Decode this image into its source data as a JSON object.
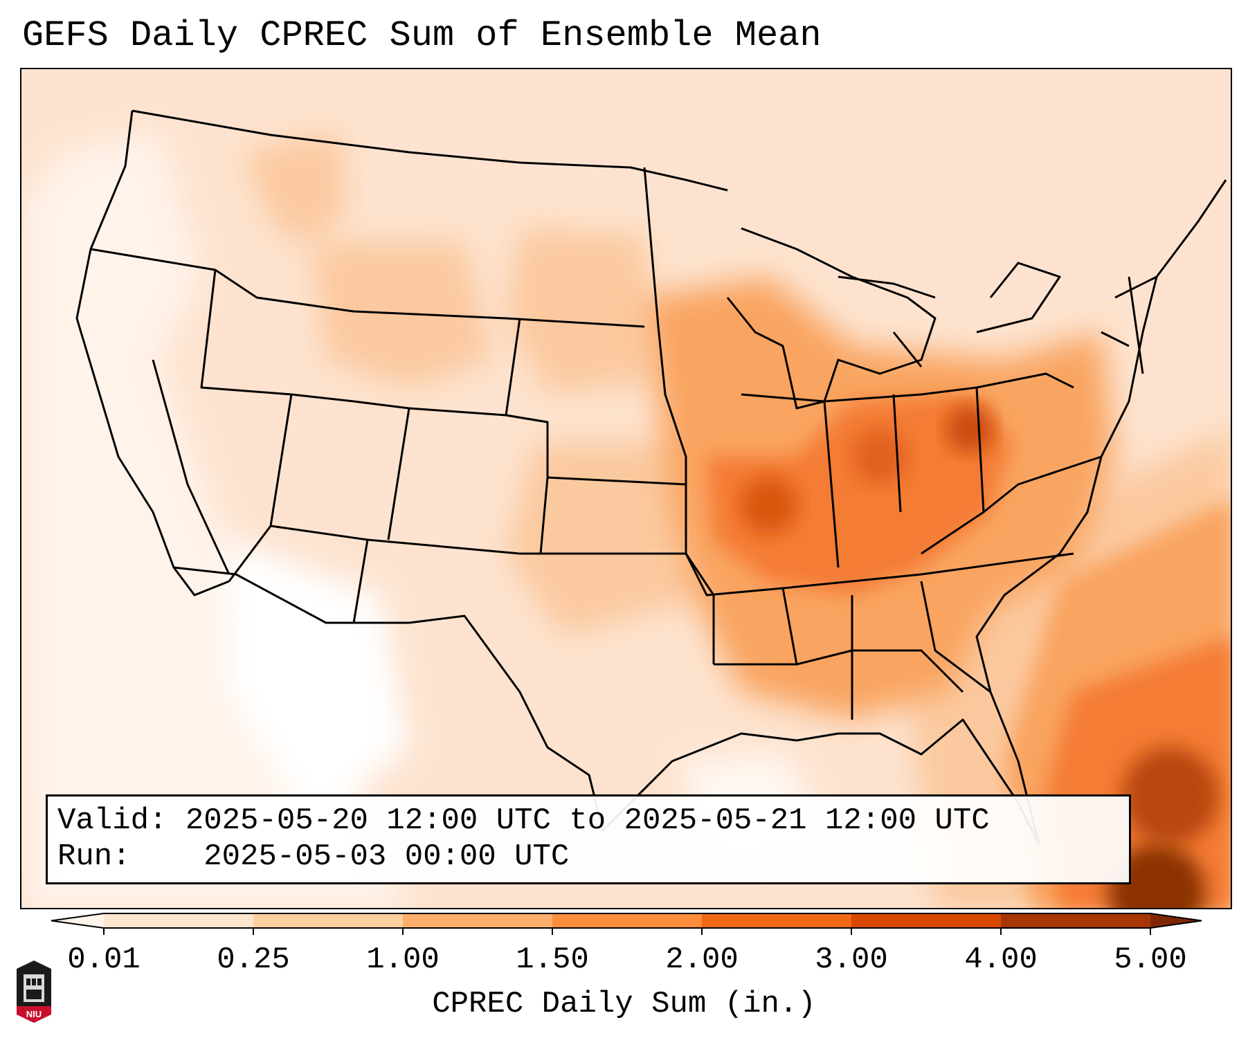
{
  "title": "GEFS Daily CPREC Sum of Ensemble Mean",
  "info": {
    "valid_label": "Valid:",
    "valid_value": "2025-05-20 12:00 UTC to 2025-05-21 12:00 UTC",
    "run_label": "Run:",
    "run_value": "2025-05-03 00:00 UTC"
  },
  "colorbar": {
    "label": "CPREC Daily Sum (in.)",
    "ticks": [
      "0.01",
      "0.25",
      "1.00",
      "1.50",
      "2.00",
      "3.00",
      "4.00",
      "5.00"
    ],
    "colors": [
      "#fff5eb",
      "#fee6ce",
      "#fdd0a2",
      "#fdae6b",
      "#fd8d3c",
      "#f16913",
      "#d94801",
      "#a63603",
      "#7f2704"
    ]
  },
  "logo": {
    "text": "NIU",
    "icon": "niu-tower-logo-icon"
  }
}
